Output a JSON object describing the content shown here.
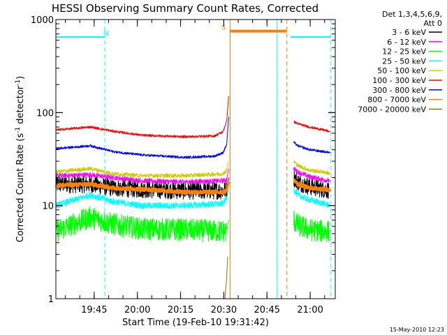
{
  "chart_data": {
    "type": "line",
    "title": "HESSI Observing Summary Count Rates, Corrected",
    "ylabel_parts": [
      "Corrected Count Rate (s",
      "-1",
      " detector",
      "-1",
      ")"
    ],
    "xlabel": "Start Time (19-Feb-10 19:31:42)",
    "footer": "15-May-2010 12:23",
    "legend_header": [
      "Det 1,3,4,5,6,9,",
      "Att 0"
    ],
    "yscale": "log",
    "ylim": [
      1,
      1000
    ],
    "y_ticks": [
      {
        "v": 1,
        "label": "1"
      },
      {
        "v": 10,
        "label": "10"
      },
      {
        "v": 100,
        "label": "100"
      },
      {
        "v": 1000,
        "label": "1000"
      }
    ],
    "xlim_minutes": [
      0,
      97
    ],
    "x_ticks": [
      {
        "label": "19:45",
        "t": 13.3
      },
      {
        "label": "20:00",
        "t": 28.3
      },
      {
        "label": "20:15",
        "t": 43.3
      },
      {
        "label": "20:30",
        "t": 58.3
      },
      {
        "label": "20:45",
        "t": 73.3
      },
      {
        "label": "21:00",
        "t": 88.3
      }
    ],
    "series": [
      {
        "name": "3 - 6 keV",
        "color": "#000000",
        "width": 1,
        "noise": 0.22,
        "base": [
          [
            0,
            17
          ],
          [
            12,
            17
          ],
          [
            20,
            15.5
          ],
          [
            30,
            15
          ],
          [
            45,
            14.5
          ],
          [
            58,
            14.5
          ],
          [
            59.3,
            15
          ],
          [
            60,
            20
          ]
        ],
        "post": [
          [
            82.6,
            20
          ],
          [
            84,
            18
          ],
          [
            88,
            16
          ],
          [
            93,
            15
          ],
          [
            95.5,
            14.5
          ]
        ]
      },
      {
        "name": "6 - 12 keV",
        "color": "#ff00ff",
        "width": 1,
        "noise": 0.06,
        "base": [
          [
            0,
            21
          ],
          [
            12,
            21.5
          ],
          [
            20,
            20
          ],
          [
            30,
            18.5
          ],
          [
            45,
            18
          ],
          [
            58,
            18.5
          ],
          [
            59.3,
            19
          ],
          [
            60,
            25
          ]
        ],
        "post": [
          [
            82.6,
            25
          ],
          [
            84,
            23
          ],
          [
            88,
            20.5
          ],
          [
            93,
            19
          ],
          [
            95.5,
            18.5
          ]
        ]
      },
      {
        "name": "12 - 25 keV",
        "color": "#00ff00",
        "width": 1,
        "noise": 0.28,
        "base": [
          [
            0,
            5.3
          ],
          [
            12,
            7.5
          ],
          [
            20,
            6.3
          ],
          [
            30,
            5.6
          ],
          [
            45,
            5.5
          ],
          [
            58,
            5.3
          ],
          [
            59.3,
            5.3
          ],
          [
            60,
            7
          ]
        ],
        "post": [
          [
            82.6,
            7
          ],
          [
            84,
            6.2
          ],
          [
            88,
            5.5
          ],
          [
            93,
            5.3
          ],
          [
            95.5,
            5.3
          ]
        ]
      },
      {
        "name": "25 - 50 keV",
        "color": "#00ffff",
        "width": 1,
        "noise": 0.08,
        "base": [
          [
            0,
            10
          ],
          [
            12,
            13
          ],
          [
            20,
            11
          ],
          [
            30,
            10
          ],
          [
            45,
            10
          ],
          [
            58,
            10.5
          ],
          [
            59.3,
            12
          ],
          [
            60,
            15
          ]
        ],
        "post": [
          [
            82.6,
            15
          ],
          [
            84,
            13
          ],
          [
            88,
            11.5
          ],
          [
            93,
            10.5
          ],
          [
            95.5,
            10
          ]
        ]
      },
      {
        "name": "50 - 100 keV",
        "color": "#cccc00",
        "width": 1,
        "noise": 0.05,
        "base": [
          [
            0,
            23
          ],
          [
            12,
            25
          ],
          [
            20,
            22
          ],
          [
            30,
            21
          ],
          [
            45,
            21
          ],
          [
            58,
            22
          ],
          [
            59.3,
            24
          ],
          [
            60,
            30
          ]
        ],
        "post": [
          [
            82.6,
            30
          ],
          [
            84,
            27
          ],
          [
            88,
            24
          ],
          [
            93,
            23
          ],
          [
            95.5,
            22
          ]
        ]
      },
      {
        "name": "100 - 300 keV",
        "color": "#ff0000",
        "width": 1,
        "noise": 0.03,
        "base": [
          [
            0,
            65
          ],
          [
            12,
            70
          ],
          [
            20,
            63
          ],
          [
            30,
            57
          ],
          [
            45,
            55
          ],
          [
            55,
            56
          ],
          [
            58,
            62
          ],
          [
            59.3,
            80
          ],
          [
            60,
            150
          ]
        ],
        "post": [
          [
            82.6,
            80
          ],
          [
            84,
            76
          ],
          [
            88,
            70
          ],
          [
            93,
            65
          ],
          [
            95.5,
            62
          ]
        ]
      },
      {
        "name": "300 - 800 keV",
        "color": "#0000ff",
        "width": 1,
        "noise": 0.03,
        "base": [
          [
            0,
            41
          ],
          [
            12,
            44
          ],
          [
            20,
            38
          ],
          [
            30,
            35
          ],
          [
            45,
            33
          ],
          [
            55,
            34
          ],
          [
            58,
            37
          ],
          [
            59.3,
            45
          ],
          [
            60,
            90
          ]
        ],
        "post": [
          [
            82.6,
            48
          ],
          [
            84,
            44
          ],
          [
            88,
            40
          ],
          [
            93,
            38
          ],
          [
            95.5,
            37
          ]
        ]
      },
      {
        "name": "800 - 7000 keV",
        "color": "#ff8000",
        "width": 3,
        "noise": 0.04,
        "base": [
          [
            0,
            16.5
          ],
          [
            12,
            17
          ],
          [
            20,
            15.5
          ],
          [
            30,
            15
          ],
          [
            45,
            14
          ],
          [
            58,
            14
          ],
          [
            59.3,
            14.5
          ],
          [
            60,
            18
          ]
        ],
        "post": [
          [
            82.6,
            19
          ],
          [
            84,
            17
          ],
          [
            88,
            15.5
          ],
          [
            93,
            15
          ],
          [
            95.5,
            14.5
          ]
        ]
      },
      {
        "name": "7000 - 20000 keV",
        "color": "#808000",
        "width": 1,
        "noise": 0,
        "base": [
          [
            58.7,
            1.0
          ],
          [
            59.2,
            1.5
          ],
          [
            59.7,
            3.0
          ]
        ],
        "post": []
      }
    ],
    "attenuator_segments": [
      {
        "label": "N",
        "label_t": 17.5,
        "color": "#00ffff",
        "height_value": 650,
        "start": 0,
        "end": 17
      },
      {
        "label": "S",
        "label_t": 58.2,
        "color": "#ff8000",
        "height_value": 750,
        "start": 60.5,
        "end": 80.2,
        "thick": true
      },
      {
        "label": "",
        "label_t": 0,
        "color": "#00ffff",
        "height_value": 650,
        "start": 81.5,
        "end": 95.5
      }
    ],
    "vertical_markers": [
      {
        "t": 0,
        "color": "#00ffff",
        "dashed": false
      },
      {
        "t": 17,
        "color": "#00ffff",
        "dashed": true
      },
      {
        "t": 60.5,
        "color": "#ff8000",
        "dashed": false
      },
      {
        "t": 76.8,
        "color": "#00ffff",
        "dashed": false
      },
      {
        "t": 80.2,
        "color": "#ff8000",
        "dashed": true
      },
      {
        "t": 95.5,
        "color": "#00ffff",
        "dashed": true
      }
    ]
  }
}
